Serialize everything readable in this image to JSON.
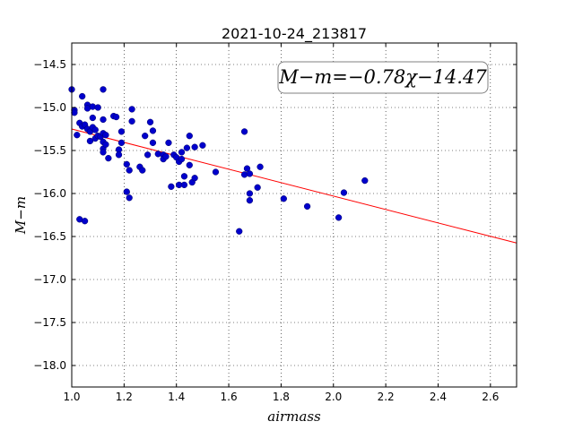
{
  "chart_data": {
    "type": "scatter",
    "title": "2021-10-24_213817",
    "xlabel": "airmass",
    "ylabel": "M−m",
    "xlim": [
      1.0,
      2.7
    ],
    "ylim": [
      -18.25,
      -14.25
    ],
    "xticks": [
      "1.0",
      "1.2",
      "1.4",
      "1.6",
      "1.8",
      "2.0",
      "2.2",
      "2.4",
      "2.6"
    ],
    "yticks": [
      "−14.5",
      "−15.0",
      "−15.5",
      "−16.0",
      "−16.5",
      "−17.0",
      "−17.5",
      "−18.0"
    ],
    "grid": true,
    "annotation": "M−m=−0.78χ−14.47",
    "fit": {
      "slope": -0.78,
      "intercept": -14.47,
      "color": "#ff0000"
    },
    "point_color": "#0000cc",
    "points": [
      [
        1.0,
        -14.79
      ],
      [
        1.01,
        -15.03
      ],
      [
        1.01,
        -15.06
      ],
      [
        1.02,
        -15.32
      ],
      [
        1.03,
        -15.18
      ],
      [
        1.03,
        -16.3
      ],
      [
        1.04,
        -14.87
      ],
      [
        1.04,
        -15.22
      ],
      [
        1.05,
        -15.2
      ],
      [
        1.05,
        -16.32
      ],
      [
        1.06,
        -14.97
      ],
      [
        1.06,
        -15.01
      ],
      [
        1.06,
        -15.25
      ],
      [
        1.07,
        -15.28
      ],
      [
        1.07,
        -15.39
      ],
      [
        1.08,
        -14.99
      ],
      [
        1.08,
        -15.12
      ],
      [
        1.08,
        -15.23
      ],
      [
        1.09,
        -15.26
      ],
      [
        1.09,
        -15.36
      ],
      [
        1.1,
        -15.0
      ],
      [
        1.1,
        -15.33
      ],
      [
        1.11,
        -15.34
      ],
      [
        1.12,
        -14.79
      ],
      [
        1.12,
        -15.14
      ],
      [
        1.12,
        -15.3
      ],
      [
        1.12,
        -15.4
      ],
      [
        1.12,
        -15.48
      ],
      [
        1.12,
        -15.52
      ],
      [
        1.13,
        -15.32
      ],
      [
        1.13,
        -15.43
      ],
      [
        1.14,
        -15.59
      ],
      [
        1.16,
        -15.1
      ],
      [
        1.17,
        -15.11
      ],
      [
        1.18,
        -15.49
      ],
      [
        1.18,
        -15.55
      ],
      [
        1.19,
        -15.28
      ],
      [
        1.19,
        -15.41
      ],
      [
        1.21,
        -15.98
      ],
      [
        1.21,
        -15.66
      ],
      [
        1.22,
        -15.73
      ],
      [
        1.22,
        -16.05
      ],
      [
        1.23,
        -15.02
      ],
      [
        1.23,
        -15.16
      ],
      [
        1.26,
        -15.69
      ],
      [
        1.27,
        -15.73
      ],
      [
        1.28,
        -15.33
      ],
      [
        1.29,
        -15.55
      ],
      [
        1.3,
        -15.17
      ],
      [
        1.31,
        -15.27
      ],
      [
        1.31,
        -15.41
      ],
      [
        1.33,
        -15.54
      ],
      [
        1.35,
        -15.55
      ],
      [
        1.35,
        -15.6
      ],
      [
        1.36,
        -15.57
      ],
      [
        1.37,
        -15.41
      ],
      [
        1.38,
        -15.92
      ],
      [
        1.39,
        -15.55
      ],
      [
        1.4,
        -15.58
      ],
      [
        1.41,
        -15.63
      ],
      [
        1.41,
        -15.9
      ],
      [
        1.42,
        -15.52
      ],
      [
        1.42,
        -15.6
      ],
      [
        1.43,
        -15.8
      ],
      [
        1.43,
        -15.9
      ],
      [
        1.44,
        -15.47
      ],
      [
        1.45,
        -15.33
      ],
      [
        1.45,
        -15.67
      ],
      [
        1.46,
        -15.87
      ],
      [
        1.47,
        -15.46
      ],
      [
        1.47,
        -15.82
      ],
      [
        1.5,
        -15.44
      ],
      [
        1.55,
        -15.75
      ],
      [
        1.64,
        -16.44
      ],
      [
        1.66,
        -15.28
      ],
      [
        1.66,
        -15.78
      ],
      [
        1.67,
        -15.71
      ],
      [
        1.68,
        -15.77
      ],
      [
        1.68,
        -16.0
      ],
      [
        1.68,
        -16.08
      ],
      [
        1.71,
        -15.93
      ],
      [
        1.72,
        -15.69
      ],
      [
        1.81,
        -16.06
      ],
      [
        1.9,
        -16.15
      ],
      [
        2.02,
        -16.28
      ],
      [
        2.04,
        -15.99
      ],
      [
        2.12,
        -15.85
      ]
    ]
  }
}
